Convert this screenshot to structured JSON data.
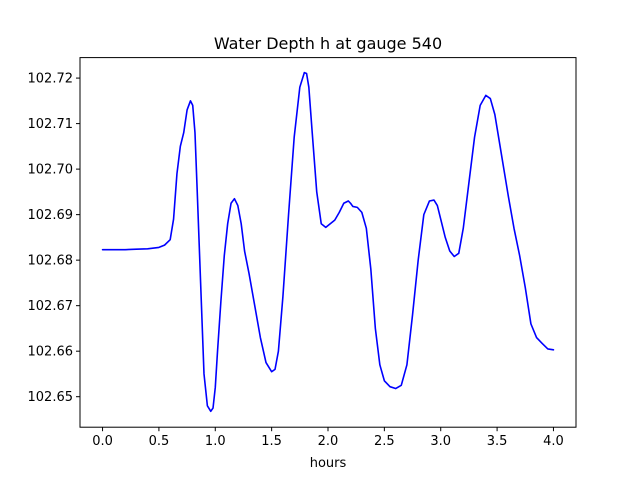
{
  "chart_data": {
    "type": "line",
    "title": "Water Depth h at gauge 540",
    "xlabel": "hours",
    "ylabel": "",
    "xlim": [
      -0.2,
      4.2
    ],
    "ylim": [
      102.6433,
      102.7245
    ],
    "xticks": [
      0.0,
      0.5,
      1.0,
      1.5,
      2.0,
      2.5,
      3.0,
      3.5,
      4.0
    ],
    "xtick_labels": [
      "0.0",
      "0.5",
      "1.0",
      "1.5",
      "2.0",
      "2.5",
      "3.0",
      "3.5",
      "4.0"
    ],
    "yticks": [
      102.65,
      102.66,
      102.67,
      102.68,
      102.69,
      102.7,
      102.71,
      102.72
    ],
    "ytick_labels": [
      "102.65",
      "102.66",
      "102.67",
      "102.68",
      "102.69",
      "102.70",
      "102.71",
      "102.72"
    ],
    "grid": false,
    "series": [
      {
        "color": "#0000ff",
        "x": [
          0.0,
          0.1,
          0.2,
          0.3,
          0.4,
          0.5,
          0.55,
          0.6,
          0.63,
          0.66,
          0.69,
          0.72,
          0.75,
          0.78,
          0.8,
          0.82,
          0.84,
          0.87,
          0.9,
          0.93,
          0.96,
          0.98,
          1.0,
          1.02,
          1.05,
          1.08,
          1.11,
          1.14,
          1.17,
          1.2,
          1.23,
          1.26,
          1.3,
          1.35,
          1.4,
          1.45,
          1.5,
          1.53,
          1.56,
          1.6,
          1.65,
          1.7,
          1.75,
          1.79,
          1.81,
          1.83,
          1.86,
          1.9,
          1.94,
          1.98,
          2.02,
          2.06,
          2.1,
          2.14,
          2.18,
          2.2,
          2.22,
          2.26,
          2.3,
          2.34,
          2.38,
          2.42,
          2.46,
          2.5,
          2.55,
          2.6,
          2.65,
          2.7,
          2.75,
          2.8,
          2.85,
          2.9,
          2.94,
          2.97,
          3.0,
          3.04,
          3.08,
          3.12,
          3.16,
          3.2,
          3.25,
          3.3,
          3.35,
          3.4,
          3.44,
          3.48,
          3.52,
          3.56,
          3.6,
          3.65,
          3.7,
          3.75,
          3.8,
          3.85,
          3.9,
          3.95,
          4.0
        ],
        "y": [
          102.6823,
          102.6823,
          102.6823,
          102.6824,
          102.6825,
          102.6828,
          102.6833,
          102.6845,
          102.689,
          102.699,
          102.705,
          102.708,
          102.713,
          102.715,
          102.714,
          102.708,
          102.695,
          102.675,
          102.655,
          102.648,
          102.6468,
          102.6475,
          102.652,
          102.66,
          102.671,
          102.681,
          102.688,
          102.6925,
          102.6935,
          102.692,
          102.688,
          102.682,
          102.677,
          102.67,
          102.663,
          102.6575,
          102.6555,
          102.656,
          102.66,
          102.672,
          102.69,
          102.707,
          102.718,
          102.7212,
          102.721,
          102.718,
          102.708,
          102.695,
          102.688,
          102.6872,
          102.688,
          102.6888,
          102.6905,
          102.6925,
          102.693,
          102.6925,
          102.6918,
          102.6916,
          102.6905,
          102.687,
          102.678,
          102.665,
          102.657,
          102.6535,
          102.6522,
          102.6518,
          102.6525,
          102.657,
          102.668,
          102.68,
          102.69,
          102.693,
          102.6932,
          102.692,
          102.689,
          102.685,
          102.682,
          102.6808,
          102.6815,
          102.687,
          102.697,
          102.707,
          102.714,
          102.7162,
          102.7155,
          102.712,
          102.706,
          102.7,
          102.694,
          102.687,
          102.681,
          102.674,
          102.666,
          102.663,
          102.6617,
          102.6605,
          102.6603
        ]
      }
    ]
  }
}
